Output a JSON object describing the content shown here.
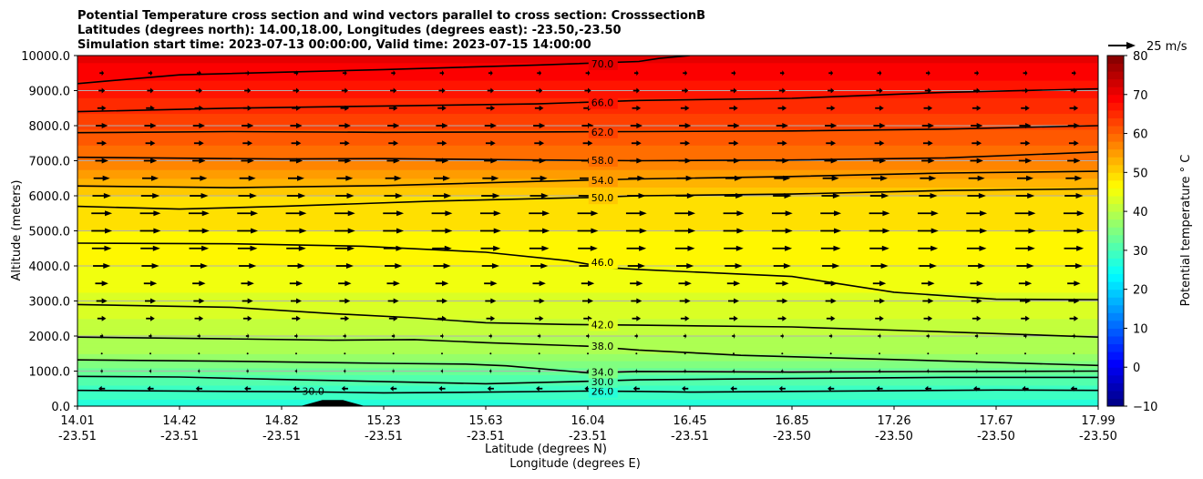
{
  "chart_data": {
    "type": "heatmap",
    "title_lines": [
      "Potential Temperature cross section and wind vectors parallel to cross section: CrosssectionB",
      "Latitudes (degrees north): 14.00,18.00, Longitudes (degrees east): -23.50,-23.50",
      "Simulation start time: 2023-07-13 00:00:00, Valid time: 2023-07-15 14:00:00"
    ],
    "ylabel": "Altitude (meters)",
    "xlabel_lines": [
      "Latitude (degrees N)",
      "Longitude (degrees E)"
    ],
    "ylim": [
      0,
      10000
    ],
    "y_ticks": [
      0,
      1000,
      2000,
      3000,
      4000,
      5000,
      6000,
      7000,
      8000,
      9000,
      10000
    ],
    "y_tick_labels": [
      "0.0",
      "1000.0",
      "2000.0",
      "3000.0",
      "4000.0",
      "5000.0",
      "6000.0",
      "7000.0",
      "8000.0",
      "9000.0",
      "10000.0"
    ],
    "x_ticks": [
      {
        "lat": "14.01",
        "lon": "-23.51"
      },
      {
        "lat": "14.42",
        "lon": "-23.51"
      },
      {
        "lat": "14.82",
        "lon": "-23.51"
      },
      {
        "lat": "15.23",
        "lon": "-23.51"
      },
      {
        "lat": "15.63",
        "lon": "-23.51"
      },
      {
        "lat": "16.04",
        "lon": "-23.51"
      },
      {
        "lat": "16.45",
        "lon": "-23.51"
      },
      {
        "lat": "16.85",
        "lon": "-23.50"
      },
      {
        "lat": "17.26",
        "lon": "-23.50"
      },
      {
        "lat": "17.67",
        "lon": "-23.50"
      },
      {
        "lat": "17.99",
        "lon": "-23.50"
      }
    ],
    "grid": "horizontal",
    "colormap": "jet",
    "colorbar": {
      "label": "Potential temperature ° C",
      "range": [
        -10,
        80
      ],
      "ticks": [
        -10,
        0,
        10,
        20,
        30,
        40,
        50,
        60,
        70,
        80
      ],
      "levels_step": 2
    },
    "field_profile": [
      {
        "alt": 0,
        "temp": 27
      },
      {
        "alt": 300,
        "temp": 28.5
      },
      {
        "alt": 800,
        "temp": 31
      },
      {
        "alt": 1500,
        "temp": 38
      },
      {
        "alt": 2500,
        "temp": 42
      },
      {
        "alt": 4000,
        "temp": 46
      },
      {
        "alt": 5000,
        "temp": 48
      },
      {
        "alt": 6000,
        "temp": 50
      },
      {
        "alt": 6500,
        "temp": 54
      },
      {
        "alt": 7000,
        "temp": 58
      },
      {
        "alt": 7900,
        "temp": 62
      },
      {
        "alt": 8800,
        "temp": 66
      },
      {
        "alt": 9800,
        "temp": 70
      },
      {
        "alt": 10000,
        "temp": 72
      }
    ],
    "contours": [
      {
        "level": 26.0,
        "label": "26.0",
        "path": [
          [
            0,
            450
          ],
          [
            0.15,
            420
          ],
          [
            0.22,
            410
          ],
          [
            0.3,
            380
          ],
          [
            0.4,
            400
          ],
          [
            0.5,
            430
          ],
          [
            0.55,
            420
          ],
          [
            0.6,
            400
          ],
          [
            0.7,
            420
          ],
          [
            0.8,
            440
          ],
          [
            0.9,
            460
          ],
          [
            1,
            450
          ]
        ]
      },
      {
        "level": 30.0,
        "label": "30.0",
        "path": [
          [
            0,
            850
          ],
          [
            0.1,
            830
          ],
          [
            0.2,
            760
          ],
          [
            0.4,
            640
          ],
          [
            0.5,
            710
          ],
          [
            0.55,
            750
          ],
          [
            0.7,
            790
          ],
          [
            0.85,
            820
          ],
          [
            1,
            820
          ]
        ]
      },
      {
        "level": 34.0,
        "label": "34.0",
        "path": [
          [
            0,
            1320
          ],
          [
            0.15,
            1280
          ],
          [
            0.3,
            1220
          ],
          [
            0.38,
            1200
          ],
          [
            0.42,
            1150
          ],
          [
            0.5,
            950
          ],
          [
            0.55,
            990
          ],
          [
            0.7,
            970
          ],
          [
            0.85,
            990
          ],
          [
            1,
            1000
          ]
        ]
      },
      {
        "level": 38.0,
        "label": "38.0",
        "path": [
          [
            0,
            1970
          ],
          [
            0.15,
            1920
          ],
          [
            0.25,
            1880
          ],
          [
            0.33,
            1900
          ],
          [
            0.4,
            1810
          ],
          [
            0.5,
            1710
          ],
          [
            0.55,
            1600
          ],
          [
            0.65,
            1450
          ],
          [
            0.8,
            1330
          ],
          [
            1,
            1160
          ]
        ]
      },
      {
        "level": 42.0,
        "label": "42.0",
        "path": [
          [
            0,
            2900
          ],
          [
            0.15,
            2820
          ],
          [
            0.25,
            2640
          ],
          [
            0.33,
            2520
          ],
          [
            0.4,
            2380
          ],
          [
            0.48,
            2330
          ],
          [
            0.55,
            2310
          ],
          [
            0.7,
            2260
          ],
          [
            0.85,
            2120
          ],
          [
            1,
            1970
          ]
        ]
      },
      {
        "level": 46.0,
        "label": "46.0",
        "path": [
          [
            0,
            4650
          ],
          [
            0.15,
            4630
          ],
          [
            0.28,
            4560
          ],
          [
            0.4,
            4390
          ],
          [
            0.48,
            4150
          ],
          [
            0.52,
            3950
          ],
          [
            0.55,
            3900
          ],
          [
            0.7,
            3700
          ],
          [
            0.8,
            3250
          ],
          [
            0.9,
            3050
          ],
          [
            1,
            3040
          ]
        ]
      },
      {
        "level": 50.0,
        "label": "50.0",
        "path": [
          [
            0,
            5700
          ],
          [
            0.1,
            5620
          ],
          [
            0.2,
            5700
          ],
          [
            0.35,
            5850
          ],
          [
            0.5,
            5950
          ],
          [
            0.55,
            6000
          ],
          [
            0.7,
            6050
          ],
          [
            0.85,
            6150
          ],
          [
            1,
            6200
          ]
        ]
      },
      {
        "level": 54.0,
        "label": "54.0",
        "path": [
          [
            0,
            6280
          ],
          [
            0.15,
            6230
          ],
          [
            0.3,
            6290
          ],
          [
            0.45,
            6410
          ],
          [
            0.55,
            6480
          ],
          [
            0.7,
            6550
          ],
          [
            0.85,
            6650
          ],
          [
            1,
            6700
          ]
        ]
      },
      {
        "level": 58.0,
        "label": "58.0",
        "path": [
          [
            0,
            7100
          ],
          [
            0.2,
            7050
          ],
          [
            0.3,
            7060
          ],
          [
            0.45,
            7020
          ],
          [
            0.55,
            7000
          ],
          [
            0.7,
            7020
          ],
          [
            0.85,
            7080
          ],
          [
            1,
            7250
          ]
        ]
      },
      {
        "level": 62.0,
        "label": "62.0",
        "path": [
          [
            0,
            7800
          ],
          [
            0.15,
            7830
          ],
          [
            0.3,
            7810
          ],
          [
            0.45,
            7820
          ],
          [
            0.55,
            7830
          ],
          [
            0.7,
            7850
          ],
          [
            0.85,
            7900
          ],
          [
            1,
            8000
          ]
        ]
      },
      {
        "level": 66.0,
        "label": "66.0",
        "path": [
          [
            0,
            8400
          ],
          [
            0.15,
            8500
          ],
          [
            0.3,
            8560
          ],
          [
            0.45,
            8620
          ],
          [
            0.55,
            8720
          ],
          [
            0.7,
            8780
          ],
          [
            0.85,
            8950
          ],
          [
            1,
            9050
          ]
        ]
      },
      {
        "level": 70.0,
        "label": "70.0",
        "path": [
          [
            0,
            9200
          ],
          [
            0.1,
            9450
          ],
          [
            0.3,
            9600
          ],
          [
            0.45,
            9730
          ],
          [
            0.55,
            9830
          ],
          [
            0.57,
            9920
          ],
          [
            0.6,
            10000
          ]
        ]
      }
    ],
    "bump_30": {
      "label": "30.0",
      "path": [
        [
          0.22,
          0
        ],
        [
          0.24,
          160
        ],
        [
          0.26,
          160
        ],
        [
          0.28,
          0
        ]
      ]
    },
    "wind_vectors": {
      "x_count": 21,
      "levels": [
        {
          "alt": 500,
          "u": -6
        },
        {
          "alt": 1000,
          "u": 2
        },
        {
          "alt": 1500,
          "u": 1
        },
        {
          "alt": 2000,
          "u": 3
        },
        {
          "alt": 2500,
          "u": 8
        },
        {
          "alt": 3000,
          "u": 10
        },
        {
          "alt": 3500,
          "u": 12
        },
        {
          "alt": 4000,
          "u": 16
        },
        {
          "alt": 4500,
          "u": 18
        },
        {
          "alt": 5000,
          "u": 19
        },
        {
          "alt": 5500,
          "u": 19
        },
        {
          "alt": 6000,
          "u": 17
        },
        {
          "alt": 6500,
          "u": 15
        },
        {
          "alt": 7000,
          "u": 12
        },
        {
          "alt": 7500,
          "u": 9
        },
        {
          "alt": 8000,
          "u": 11
        },
        {
          "alt": 8500,
          "u": 8
        },
        {
          "alt": 9000,
          "u": 6
        },
        {
          "alt": 9500,
          "u": 4
        }
      ]
    },
    "wind_key": {
      "label": "25 m/s",
      "speed": 25
    }
  }
}
